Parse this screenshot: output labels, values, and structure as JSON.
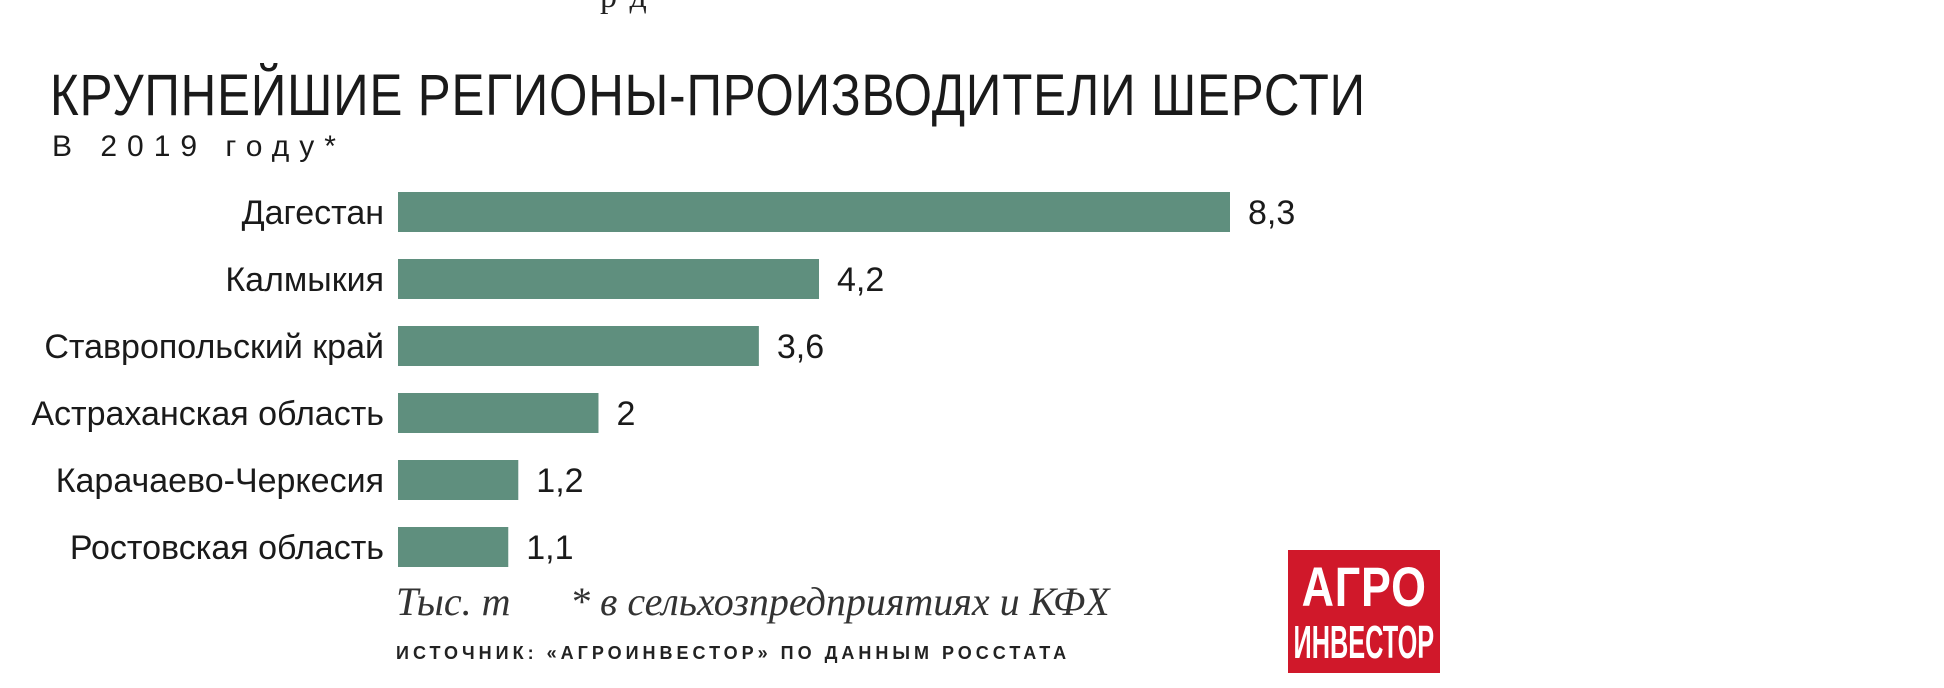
{
  "header": {
    "top_fragment": "р                              д"
  },
  "chart_data": {
    "type": "bar",
    "orientation": "horizontal",
    "title": "КРУПНЕЙШИЕ РЕГИОНЫ-ПРОИЗВОДИТЕЛИ ШЕРСТИ",
    "subtitle": "В 2019 году*",
    "categories": [
      "Дагестан",
      "Калмыкия",
      "Ставропольский край",
      "Астраханская область",
      "Карачаево-Черкесия",
      "Ростовская область"
    ],
    "values": [
      8.3,
      4.2,
      3.6,
      2,
      1.2,
      1.1
    ],
    "value_labels": [
      "8,3",
      "4,2",
      "3,6",
      "2",
      "1,2",
      "1,1"
    ],
    "unit": "Тыс. т",
    "footnote": "* в сельхозпредприятиях и КФХ",
    "source": "ИСТОЧНИК: «АГРОИНВЕСТОР» ПО ДАННЫМ РОССТАТА",
    "bar_color": "#5f8f7e",
    "xlim": [
      0,
      8.3
    ],
    "grid": false,
    "legend": "none"
  },
  "logo": {
    "line1": "АГРО",
    "line2": "ИНВЕСТОР",
    "background": "#d0182a"
  }
}
